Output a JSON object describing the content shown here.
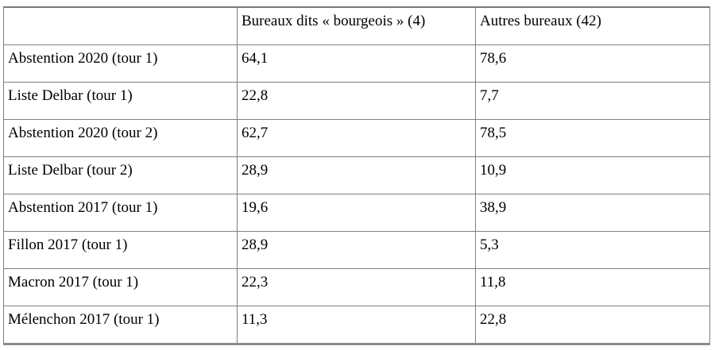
{
  "table": {
    "grid_color": "#808080",
    "columns": [
      "",
      "Bureaux dits « bourgeois » (4)",
      "Autres bureaux (42)"
    ],
    "rows": [
      {
        "label": "Abstention 2020 (tour 1)",
        "values": [
          "64,1",
          "78,6"
        ]
      },
      {
        "label": "Liste Delbar (tour 1)",
        "values": [
          "22,8",
          "7,7"
        ]
      },
      {
        "label": "Abstention 2020 (tour 2)",
        "values": [
          "62,7",
          "78,5"
        ]
      },
      {
        "label": "Liste Delbar (tour 2)",
        "values": [
          "28,9",
          "10,9"
        ]
      },
      {
        "label": "Abstention 2017 (tour 1)",
        "values": [
          "19,6",
          "38,9"
        ]
      },
      {
        "label": "Fillon 2017 (tour 1)",
        "values": [
          "28,9",
          "5,3"
        ]
      },
      {
        "label": "Macron 2017 (tour 1)",
        "values": [
          "22,3",
          "11,8"
        ]
      },
      {
        "label": "Mélenchon 2017 (tour 1)",
        "values": [
          "11,3",
          "22,8"
        ]
      }
    ]
  }
}
